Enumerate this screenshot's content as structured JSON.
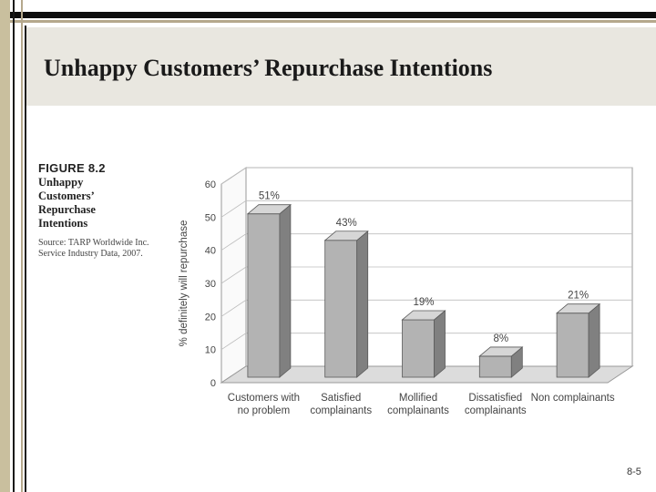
{
  "slide": {
    "title": "Unhappy Customers’ Repurchase Intentions",
    "page_number": "8-5"
  },
  "figure": {
    "label": "FIGURE 8.2",
    "title_lines": [
      "Unhappy",
      "Customers’",
      "Repurchase",
      "Intentions"
    ],
    "source_lines": [
      "Source: TARP Worldwide Inc.",
      "Service Industry Data, 2007."
    ]
  },
  "colors": {
    "bar_front": "#b3b3b3",
    "bar_side": "#808080",
    "bar_top": "#d6d6d6",
    "floor": "#dcdcdc",
    "grid": "#bdbdbd"
  },
  "chart_data": {
    "type": "bar",
    "style": "3d",
    "ylabel": "% definitely will repurchase",
    "xlabel": "",
    "ylim": [
      0,
      60
    ],
    "yticks": [
      "0",
      "10",
      "20",
      "30",
      "40",
      "50",
      "60"
    ],
    "grid": true,
    "categories": [
      [
        "Customers with",
        "no problem"
      ],
      [
        "Satisfied",
        "complainants"
      ],
      [
        "Mollified",
        "complainants"
      ],
      [
        "Dissatisfied",
        "complainants"
      ],
      [
        "Non complainants"
      ]
    ],
    "values": [
      51,
      43,
      19,
      8,
      21
    ],
    "data_labels": [
      "51%",
      "43%",
      "19%",
      "8%",
      "21%"
    ]
  }
}
